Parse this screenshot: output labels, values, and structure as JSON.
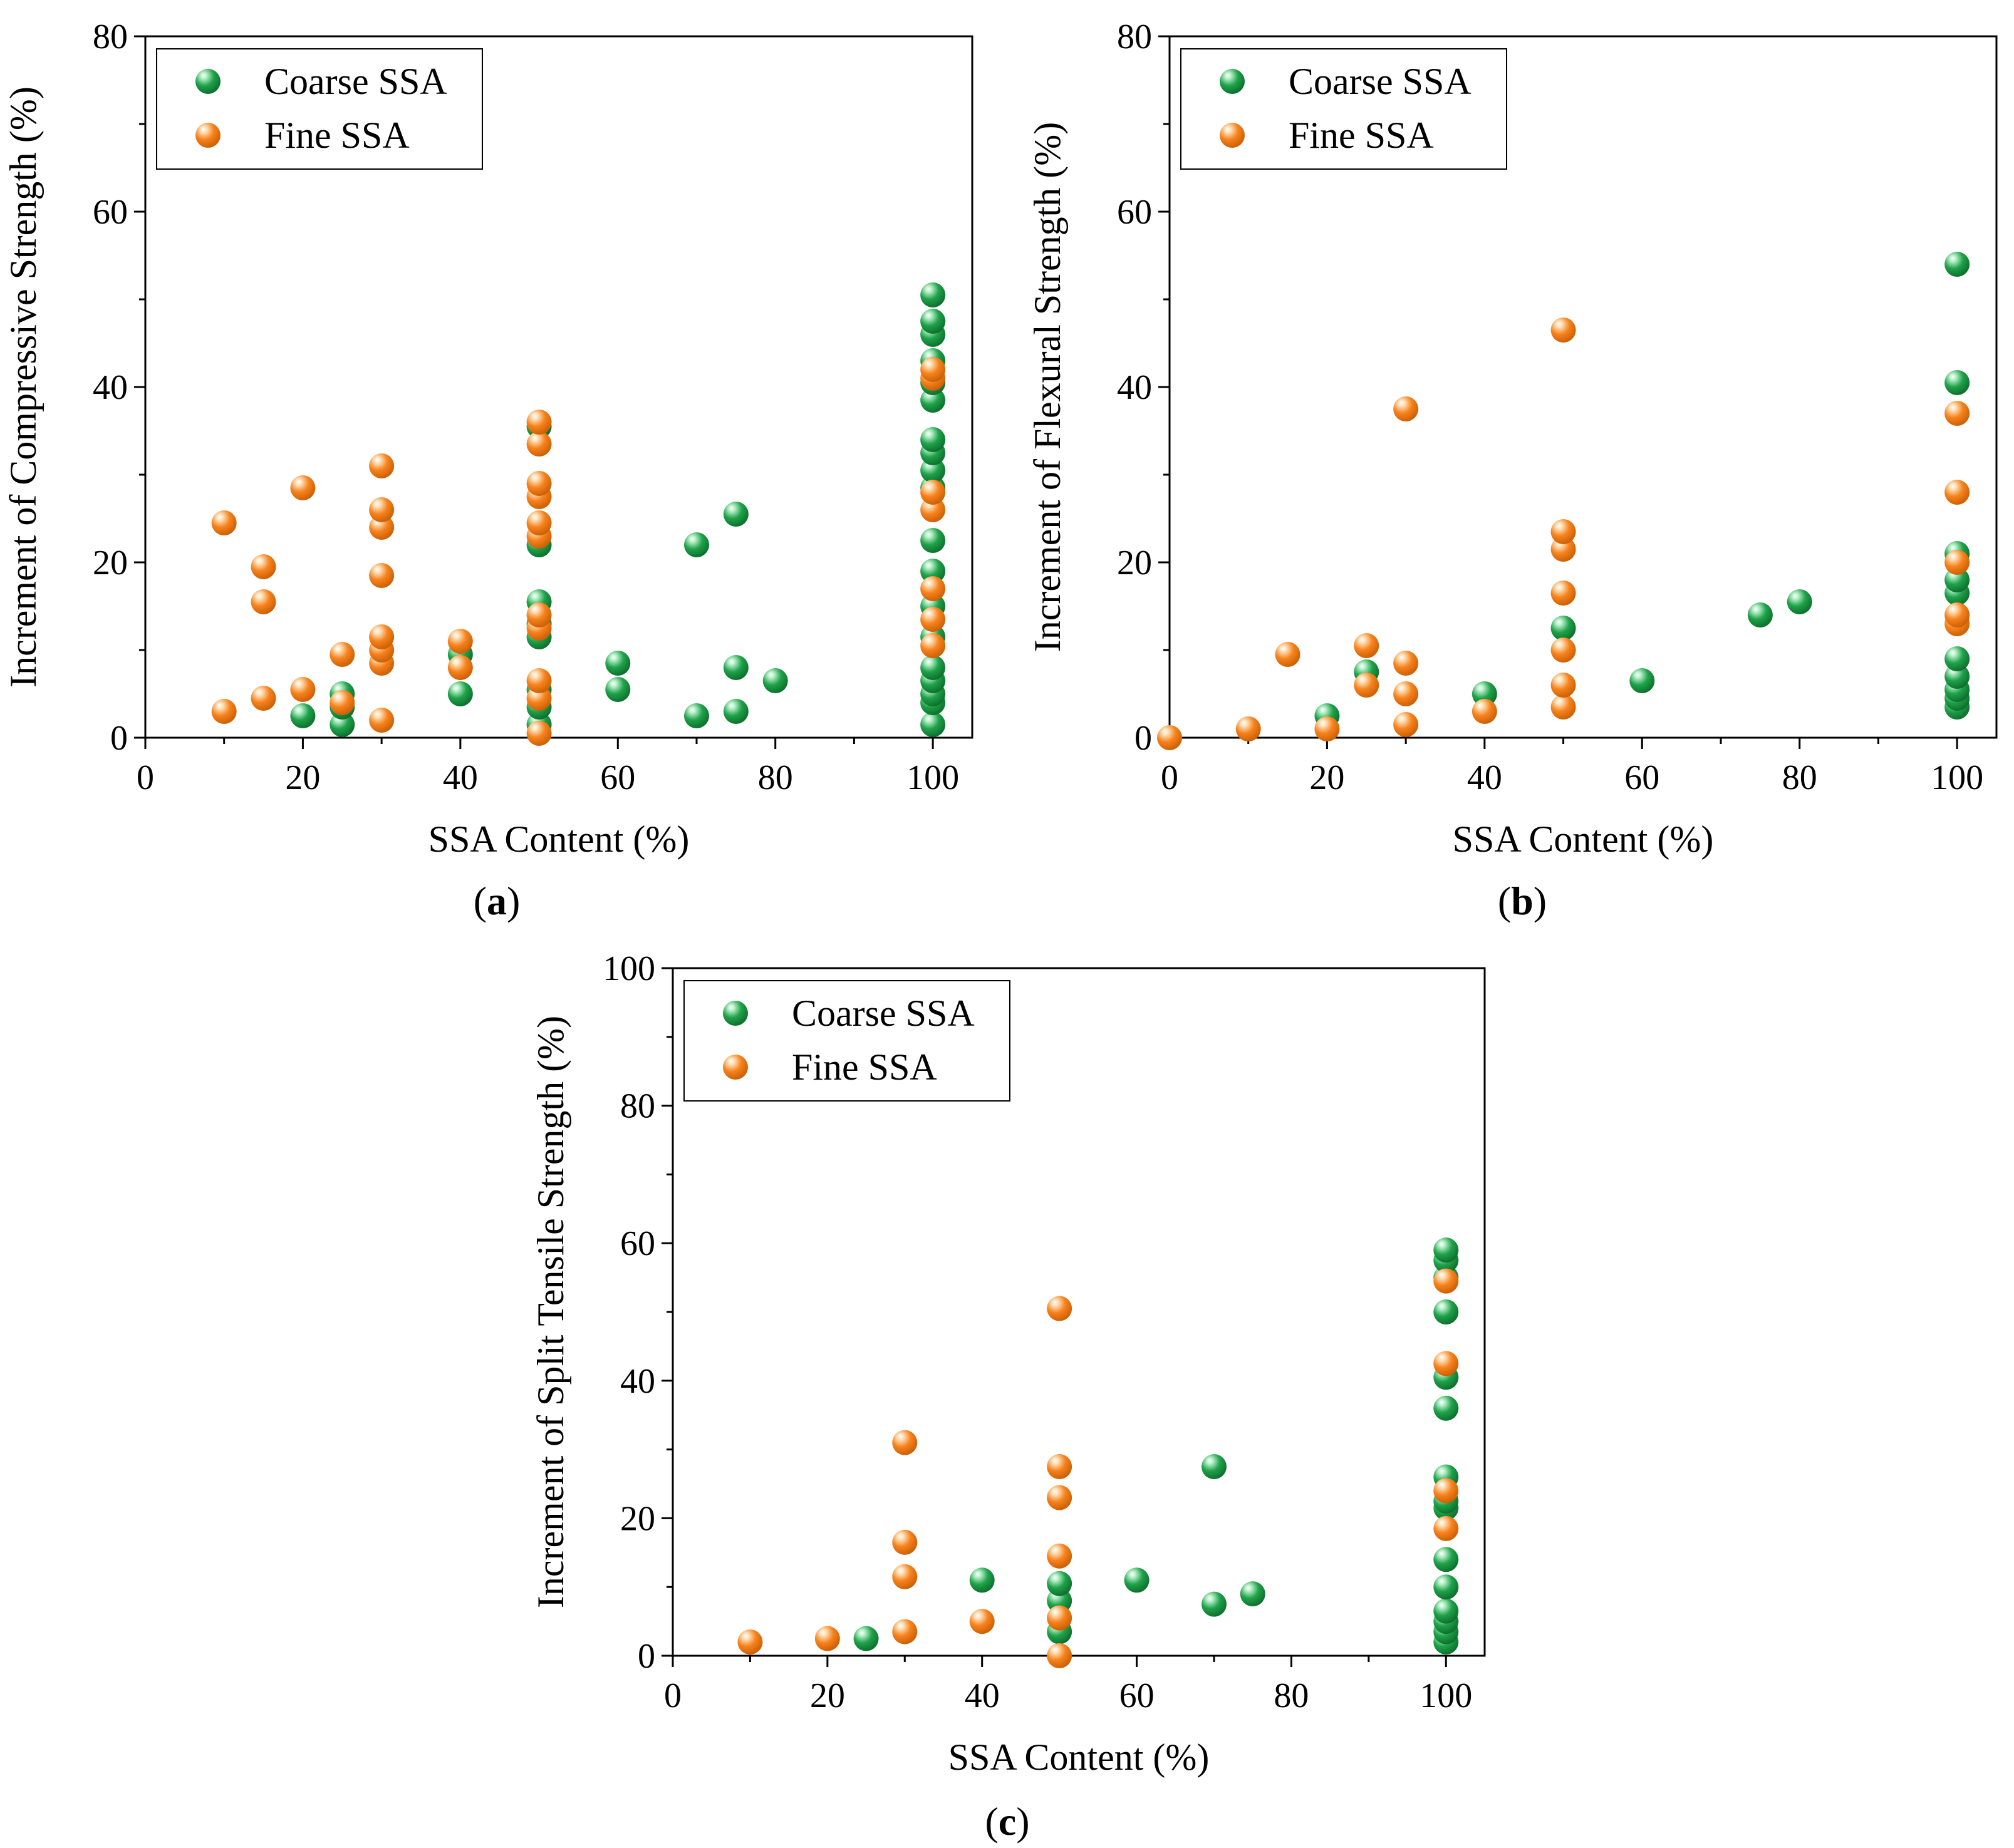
{
  "figure": {
    "colors": {
      "coarse": "#1fa24a",
      "coarse_light": "#b6f0c8",
      "coarse_dark": "#0d6e2c",
      "fine": "#f7821c",
      "fine_light": "#ffe0b8",
      "fine_dark": "#c95f06"
    }
  },
  "chart_data": [
    {
      "id": "a",
      "type": "scatter",
      "panel_label": "a",
      "xlabel": "SSA Content (%)",
      "ylabel": "Increment of Compressive Strength (%)",
      "xlim": [
        0,
        105
      ],
      "ylim": [
        0,
        80
      ],
      "xticks": [
        0,
        20,
        40,
        60,
        80,
        100
      ],
      "yticks": [
        0,
        20,
        40,
        60,
        80
      ],
      "legend": [
        "Coarse SSA",
        "Fine SSA"
      ],
      "legend_position": "top-left",
      "series": [
        {
          "name": "Coarse SSA",
          "points": [
            [
              20,
              2.5
            ],
            [
              25,
              1.5
            ],
            [
              25,
              3.5
            ],
            [
              25,
              5
            ],
            [
              40,
              5
            ],
            [
              40,
              9.5
            ],
            [
              50,
              1.5
            ],
            [
              50,
              3.5
            ],
            [
              50,
              5.5
            ],
            [
              50,
              11.5
            ],
            [
              50,
              13
            ],
            [
              50,
              15.5
            ],
            [
              50,
              22
            ],
            [
              50,
              35.5
            ],
            [
              60,
              5.5
            ],
            [
              60,
              8.5
            ],
            [
              70,
              2.5
            ],
            [
              70,
              22
            ],
            [
              75,
              3
            ],
            [
              75,
              8
            ],
            [
              75,
              25.5
            ],
            [
              80,
              6.5
            ],
            [
              100,
              1.5
            ],
            [
              100,
              4
            ],
            [
              100,
              5
            ],
            [
              100,
              6.5
            ],
            [
              100,
              8
            ],
            [
              100,
              11.5
            ],
            [
              100,
              15
            ],
            [
              100,
              19
            ],
            [
              100,
              22.5
            ],
            [
              100,
              28.5
            ],
            [
              100,
              30.5
            ],
            [
              100,
              32.5
            ],
            [
              100,
              34
            ],
            [
              100,
              38.5
            ],
            [
              100,
              40.5
            ],
            [
              100,
              43
            ],
            [
              100,
              46
            ],
            [
              100,
              47.5
            ],
            [
              100,
              50.5
            ]
          ]
        },
        {
          "name": "Fine SSA",
          "points": [
            [
              10,
              3
            ],
            [
              10,
              24.5
            ],
            [
              15,
              4.5
            ],
            [
              15,
              15.5
            ],
            [
              15,
              19.5
            ],
            [
              20,
              5.5
            ],
            [
              20,
              28.5
            ],
            [
              25,
              4
            ],
            [
              25,
              9.5
            ],
            [
              30,
              2
            ],
            [
              30,
              8.5
            ],
            [
              30,
              10
            ],
            [
              30,
              11.5
            ],
            [
              30,
              18.5
            ],
            [
              30,
              24
            ],
            [
              30,
              26
            ],
            [
              30,
              31
            ],
            [
              40,
              8
            ],
            [
              40,
              11
            ],
            [
              50,
              0.5
            ],
            [
              50,
              4.5
            ],
            [
              50,
              6.5
            ],
            [
              50,
              12.5
            ],
            [
              50,
              14
            ],
            [
              50,
              23
            ],
            [
              50,
              24.5
            ],
            [
              50,
              27.5
            ],
            [
              50,
              29
            ],
            [
              50,
              33.5
            ],
            [
              50,
              36
            ],
            [
              100,
              10.5
            ],
            [
              100,
              13.5
            ],
            [
              100,
              17
            ],
            [
              100,
              26
            ],
            [
              100,
              28
            ],
            [
              100,
              41
            ],
            [
              100,
              42
            ]
          ]
        }
      ]
    },
    {
      "id": "b",
      "type": "scatter",
      "panel_label": "b",
      "xlabel": "SSA Content (%)",
      "ylabel": "Increment of Flexural Strength (%)",
      "xlim": [
        0,
        105
      ],
      "ylim": [
        0,
        80
      ],
      "xticks": [
        0,
        20,
        40,
        60,
        80,
        100
      ],
      "yticks": [
        0,
        20,
        40,
        60,
        80
      ],
      "legend": [
        "Coarse SSA",
        "Fine SSA"
      ],
      "legend_position": "top-left",
      "series": [
        {
          "name": "Coarse SSA",
          "points": [
            [
              20,
              2.5
            ],
            [
              25,
              7.5
            ],
            [
              40,
              5
            ],
            [
              50,
              12.5
            ],
            [
              60,
              6.5
            ],
            [
              75,
              14
            ],
            [
              80,
              15.5
            ],
            [
              100,
              3.5
            ],
            [
              100,
              4.5
            ],
            [
              100,
              5.5
            ],
            [
              100,
              7
            ],
            [
              100,
              9
            ],
            [
              100,
              16.5
            ],
            [
              100,
              18
            ],
            [
              100,
              21
            ],
            [
              100,
              40.5
            ],
            [
              100,
              54
            ]
          ]
        },
        {
          "name": "Fine SSA",
          "points": [
            [
              0,
              0
            ],
            [
              10,
              1
            ],
            [
              15,
              9.5
            ],
            [
              20,
              1
            ],
            [
              25,
              6
            ],
            [
              25,
              10.5
            ],
            [
              30,
              1.5
            ],
            [
              30,
              5
            ],
            [
              30,
              8.5
            ],
            [
              30,
              37.5
            ],
            [
              40,
              3
            ],
            [
              50,
              3.5
            ],
            [
              50,
              6
            ],
            [
              50,
              10
            ],
            [
              50,
              16.5
            ],
            [
              50,
              21.5
            ],
            [
              50,
              23.5
            ],
            [
              50,
              46.5
            ],
            [
              100,
              13
            ],
            [
              100,
              14
            ],
            [
              100,
              20
            ],
            [
              100,
              28
            ],
            [
              100,
              37
            ]
          ]
        }
      ]
    },
    {
      "id": "c",
      "type": "scatter",
      "panel_label": "c",
      "xlabel": "SSA Content (%)",
      "ylabel": "Increment of Split Tensile Strength (%)",
      "xlim": [
        0,
        105
      ],
      "ylim": [
        0,
        100
      ],
      "xticks": [
        0,
        20,
        40,
        60,
        80,
        100
      ],
      "yticks": [
        0,
        20,
        40,
        60,
        80,
        100
      ],
      "legend": [
        "Coarse SSA",
        "Fine SSA"
      ],
      "legend_position": "top-left",
      "series": [
        {
          "name": "Coarse SSA",
          "points": [
            [
              25,
              2.5
            ],
            [
              40,
              11
            ],
            [
              50,
              3.5
            ],
            [
              50,
              8
            ],
            [
              50,
              10.5
            ],
            [
              60,
              11
            ],
            [
              70,
              7.5
            ],
            [
              70,
              27.5
            ],
            [
              75,
              9
            ],
            [
              100,
              2
            ],
            [
              100,
              3.5
            ],
            [
              100,
              5
            ],
            [
              100,
              6.5
            ],
            [
              100,
              10
            ],
            [
              100,
              14
            ],
            [
              100,
              21.5
            ],
            [
              100,
              22.5
            ],
            [
              100,
              26
            ],
            [
              100,
              36
            ],
            [
              100,
              40.5
            ],
            [
              100,
              50
            ],
            [
              100,
              55
            ],
            [
              100,
              57.5
            ],
            [
              100,
              59
            ]
          ]
        },
        {
          "name": "Fine SSA",
          "points": [
            [
              10,
              2
            ],
            [
              20,
              2.5
            ],
            [
              30,
              3.5
            ],
            [
              30,
              11.5
            ],
            [
              30,
              16.5
            ],
            [
              30,
              31
            ],
            [
              40,
              5
            ],
            [
              50,
              0
            ],
            [
              50,
              5.5
            ],
            [
              50,
              14.5
            ],
            [
              50,
              23
            ],
            [
              50,
              27.5
            ],
            [
              50,
              50.5
            ],
            [
              100,
              18.5
            ],
            [
              100,
              24
            ],
            [
              100,
              42.5
            ],
            [
              100,
              54.5
            ]
          ]
        }
      ]
    }
  ]
}
